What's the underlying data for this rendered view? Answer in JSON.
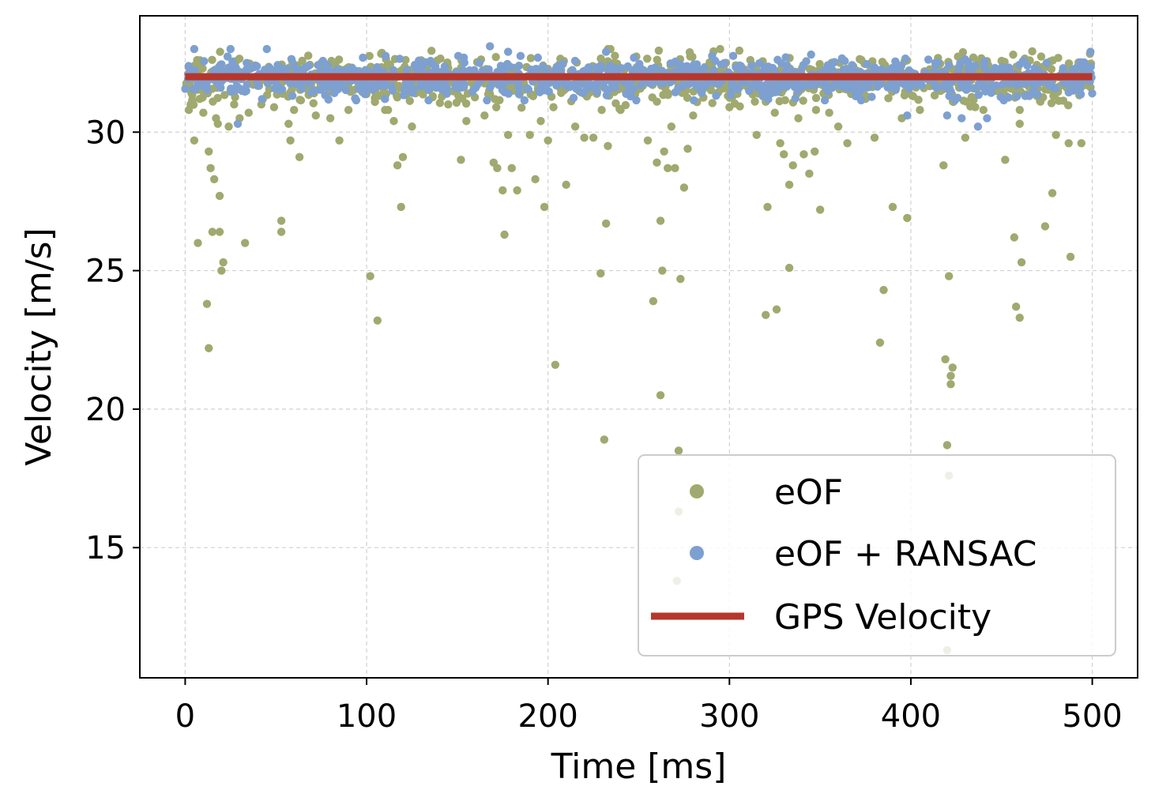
{
  "chart_data": {
    "type": "scatter",
    "title": "",
    "xlabel": "Time [ms]",
    "ylabel": "Velocity [m/s]",
    "xlim": [
      -25,
      525
    ],
    "ylim": [
      10.3,
      34.2
    ],
    "xticks": [
      0,
      100,
      200,
      300,
      400,
      500
    ],
    "yticks": [
      15,
      20,
      25,
      30
    ],
    "grid": true,
    "legend_position": "bottom-right",
    "series": [
      {
        "name": "eOF",
        "kind": "scatter",
        "color": "#a0a96f",
        "note": "dense band of ~1000 points between ~30.8 and ~33.0 m/s over 0–500 ms plus the explicit outliers below",
        "band": {
          "x_range": [
            0,
            500
          ],
          "y_center": 31.9,
          "y_spread": 0.55,
          "count": 1000
        },
        "outliers": [
          [
            2,
            30.8
          ],
          [
            3,
            31.0
          ],
          [
            5,
            29.7
          ],
          [
            7,
            26.0
          ],
          [
            8,
            31.2
          ],
          [
            10,
            30.7
          ],
          [
            12,
            23.8
          ],
          [
            13,
            22.2
          ],
          [
            13,
            29.3
          ],
          [
            14,
            28.7
          ],
          [
            15,
            26.4
          ],
          [
            16,
            28.3
          ],
          [
            17,
            30.5
          ],
          [
            18,
            30.3
          ],
          [
            19,
            27.7
          ],
          [
            19,
            26.4
          ],
          [
            20,
            25.0
          ],
          [
            21,
            25.3
          ],
          [
            24,
            30.2
          ],
          [
            27,
            31.0
          ],
          [
            30,
            30.5
          ],
          [
            33,
            26.0
          ],
          [
            35,
            30.7
          ],
          [
            42,
            31.0
          ],
          [
            49,
            30.9
          ],
          [
            53,
            26.8
          ],
          [
            53,
            26.4
          ],
          [
            57,
            30.3
          ],
          [
            58,
            29.7
          ],
          [
            60,
            30.8
          ],
          [
            63,
            29.1
          ],
          [
            72,
            30.6
          ],
          [
            80,
            30.5
          ],
          [
            85,
            29.7
          ],
          [
            90,
            30.8
          ],
          [
            102,
            24.8
          ],
          [
            106,
            23.2
          ],
          [
            115,
            30.4
          ],
          [
            117,
            28.8
          ],
          [
            119,
            27.3
          ],
          [
            120,
            29.1
          ],
          [
            125,
            30.2
          ],
          [
            145,
            31.0
          ],
          [
            152,
            29.0
          ],
          [
            155,
            30.4
          ],
          [
            165,
            30.6
          ],
          [
            170,
            28.9
          ],
          [
            172,
            28.7
          ],
          [
            175,
            27.9
          ],
          [
            176,
            26.3
          ],
          [
            178,
            29.9
          ],
          [
            180,
            28.7
          ],
          [
            183,
            27.9
          ],
          [
            190,
            29.9
          ],
          [
            193,
            28.3
          ],
          [
            196,
            30.4
          ],
          [
            198,
            27.3
          ],
          [
            200,
            29.7
          ],
          [
            203,
            30.9
          ],
          [
            204,
            21.6
          ],
          [
            210,
            28.1
          ],
          [
            215,
            30.2
          ],
          [
            220,
            29.8
          ],
          [
            225,
            29.8
          ],
          [
            229,
            24.9
          ],
          [
            231,
            18.9
          ],
          [
            232,
            26.7
          ],
          [
            233,
            29.5
          ],
          [
            240,
            30.8
          ],
          [
            255,
            29.7
          ],
          [
            258,
            23.9
          ],
          [
            260,
            28.9
          ],
          [
            262,
            26.8
          ],
          [
            262,
            20.5
          ],
          [
            263,
            25.0
          ],
          [
            264,
            29.3
          ],
          [
            266,
            28.7
          ],
          [
            268,
            30.2
          ],
          [
            270,
            28.7
          ],
          [
            271,
            13.8
          ],
          [
            272,
            18.5
          ],
          [
            272,
            16.3
          ],
          [
            273,
            24.7
          ],
          [
            275,
            28.0
          ],
          [
            277,
            29.4
          ],
          [
            280,
            30.6
          ],
          [
            300,
            30.9
          ],
          [
            315,
            29.9
          ],
          [
            320,
            23.4
          ],
          [
            321,
            27.3
          ],
          [
            325,
            30.7
          ],
          [
            326,
            23.6
          ],
          [
            328,
            29.6
          ],
          [
            330,
            29.2
          ],
          [
            333,
            28.1
          ],
          [
            333,
            25.1
          ],
          [
            335,
            28.8
          ],
          [
            338,
            30.5
          ],
          [
            341,
            29.2
          ],
          [
            344,
            28.5
          ],
          [
            347,
            29.3
          ],
          [
            350,
            27.2
          ],
          [
            355,
            30.7
          ],
          [
            360,
            30.2
          ],
          [
            365,
            29.6
          ],
          [
            380,
            29.8
          ],
          [
            383,
            22.4
          ],
          [
            385,
            24.3
          ],
          [
            390,
            27.3
          ],
          [
            395,
            30.5
          ],
          [
            398,
            26.9
          ],
          [
            405,
            30.8
          ],
          [
            418,
            28.8
          ],
          [
            419,
            21.8
          ],
          [
            420,
            18.7
          ],
          [
            420,
            11.3
          ],
          [
            421,
            17.6
          ],
          [
            421,
            24.8
          ],
          [
            422,
            21.2
          ],
          [
            422,
            20.9
          ],
          [
            423,
            21.5
          ],
          [
            430,
            29.8
          ],
          [
            440,
            30.8
          ],
          [
            452,
            29.0
          ],
          [
            457,
            26.2
          ],
          [
            458,
            23.7
          ],
          [
            460,
            23.3
          ],
          [
            461,
            25.3
          ],
          [
            460,
            30.3
          ],
          [
            474,
            26.6
          ],
          [
            478,
            27.8
          ],
          [
            480,
            29.9
          ],
          [
            487,
            29.6
          ],
          [
            488,
            25.5
          ],
          [
            494,
            29.6
          ]
        ]
      },
      {
        "name": "eOF + RANSAC",
        "kind": "scatter",
        "color": "#7da0d0",
        "note": "dense band of ~1000 points between ~30.2 and ~33.1 m/s over 0–500 ms",
        "band": {
          "x_range": [
            0,
            500
          ],
          "y_center": 31.95,
          "y_spread": 0.4,
          "count": 1000
        },
        "outliers": [
          [
            5,
            33.0
          ],
          [
            25,
            33.0
          ],
          [
            29,
            30.3
          ],
          [
            45,
            33.0
          ],
          [
            168,
            33.1
          ],
          [
            178,
            32.9
          ],
          [
            232,
            32.9
          ],
          [
            345,
            32.8
          ],
          [
            398,
            30.6
          ],
          [
            420,
            30.6
          ],
          [
            428,
            30.5
          ],
          [
            437,
            30.2
          ],
          [
            442,
            30.5
          ],
          [
            499,
            32.9
          ]
        ]
      },
      {
        "name": "GPS Velocity",
        "kind": "line",
        "color": "#b5372e",
        "x": [
          0,
          500
        ],
        "y": [
          32.0,
          32.0
        ]
      }
    ]
  }
}
